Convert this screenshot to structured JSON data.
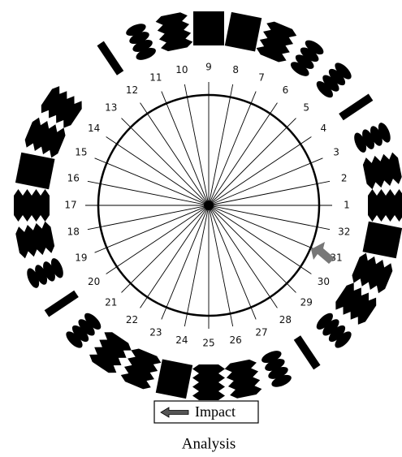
{
  "spokes": [
    "1",
    "2",
    "3",
    "4",
    "5",
    "6",
    "7",
    "8",
    "9",
    "10",
    "11",
    "12",
    "13",
    "14",
    "15",
    "16",
    "17",
    "18",
    "19",
    "20",
    "21",
    "22",
    "23",
    "24",
    "25",
    "26",
    "27",
    "28",
    "29",
    "30",
    "31",
    "32"
  ],
  "legend": "Impact",
  "caption": "Analysis"
}
